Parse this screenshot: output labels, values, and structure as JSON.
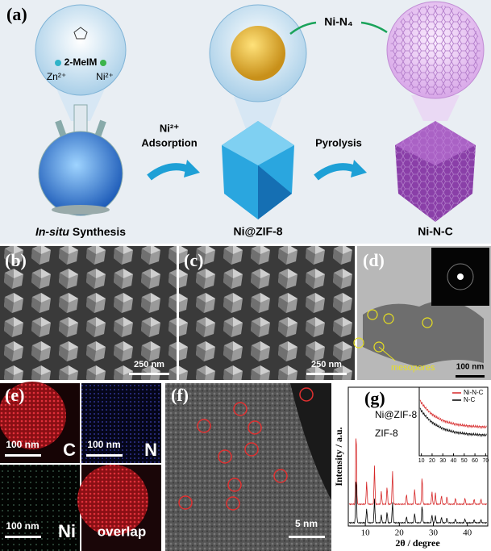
{
  "panel_a": {
    "label": "(a)",
    "ligand": "2-MeIM",
    "zn": "Zn²⁺",
    "ni": "Ni²⁺",
    "step1": [
      "Ni²⁺",
      "Adsorption"
    ],
    "step2": "Pyrolysis",
    "site": "Ni-N₄",
    "caption1_italic": "In-situ",
    "caption1_rest": " Synthesis",
    "caption2": "Ni@ZIF-8",
    "caption3": "Ni-N-C"
  },
  "panel_b": {
    "label": "(b)",
    "scale": "250 nm"
  },
  "panel_c": {
    "label": "(c)",
    "scale": "250 nm"
  },
  "panel_d": {
    "label": "(d)",
    "annotation": "mesopores",
    "scale": "100 nm"
  },
  "panel_e": {
    "label": "(e)",
    "maps": [
      {
        "scale": "100 nm",
        "element": "C"
      },
      {
        "scale": "100 nm",
        "element": "N"
      },
      {
        "scale": "100 nm",
        "element": "Ni"
      },
      {
        "element": "overlap"
      }
    ]
  },
  "panel_f": {
    "label": "(f)",
    "scale": "5 nm"
  },
  "chart_data": {
    "type": "line",
    "label": "(g)",
    "x_label": "2θ / degree",
    "y_label": "Intensity / a.u.",
    "xlim": [
      5,
      46
    ],
    "xticks": [
      10,
      20,
      30,
      40
    ],
    "series_labels": [
      "Ni@ZIF-8",
      "ZIF-8"
    ],
    "inset": {
      "xlim": [
        8,
        72
      ],
      "xticks": [
        10,
        20,
        30,
        40,
        50,
        60,
        70
      ],
      "legend": [
        {
          "name": "Ni-N-C",
          "color": "#d62728"
        },
        {
          "name": "N-C",
          "color": "#000000"
        }
      ]
    }
  }
}
